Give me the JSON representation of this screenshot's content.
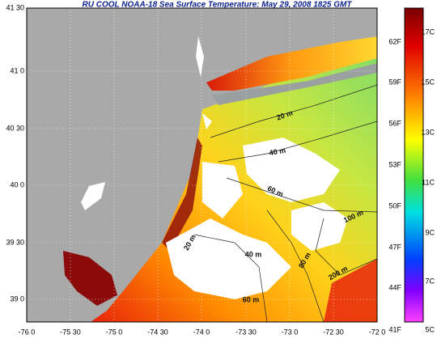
{
  "title": "RU COOL  NOAA-18  Sea Surface Temperature:  May 29, 2008 1825 GMT",
  "longitude_labels": [
    "-76 0",
    "-75 30",
    "-75 0",
    "-74 30",
    "-74 0",
    "-73 30",
    "-73 0",
    "-72 30",
    "-72 0"
  ],
  "latitude_labels": [
    "41 30",
    "41 0",
    "40 30",
    "40 0",
    "39 30",
    "39 0"
  ],
  "colorbar": {
    "fahrenheit_labels": [
      "62F",
      "59F",
      "56F",
      "53F",
      "50F",
      "47F",
      "44F",
      "41F"
    ],
    "celsius_labels": [
      "17C",
      "15C",
      "13C",
      "11C",
      "9C",
      "7C",
      "5C"
    ]
  },
  "contour_labels": [
    "20 m",
    "40 m",
    "60 m",
    "100 m",
    "20 m",
    "40 m",
    "80 m",
    "200 m",
    "60 m"
  ]
}
